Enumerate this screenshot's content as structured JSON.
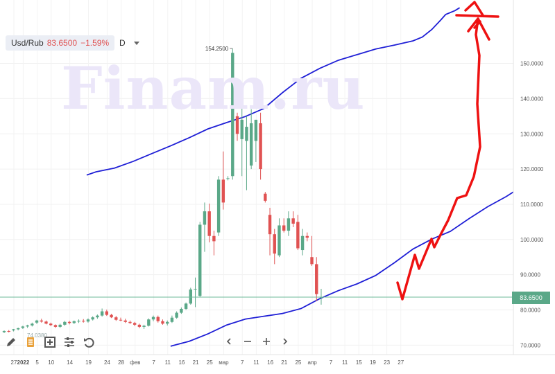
{
  "header": {
    "symbol": "Usd/Rub",
    "last_price": "83.6500",
    "change": "−1.59%",
    "timeframe": "D"
  },
  "watermark": "Finam.ru",
  "price_tag": "83.6500",
  "colors": {
    "up": "#5aa888",
    "down": "#e05252",
    "envelope": "#1f1fd6",
    "annotation": "#ee1111",
    "price_line": "#6cb899"
  },
  "toolbar": {
    "icons": [
      "pencil-icon",
      "document-icon",
      "add-indicator-icon",
      "settings-sliders-icon",
      "undo-icon"
    ],
    "nav_icons": [
      "chevron-left-icon",
      "minus-icon",
      "plus-icon",
      "chevron-right-icon"
    ]
  },
  "chart_data": {
    "type": "candlestick",
    "y_range": [
      68,
      173
    ],
    "y_ticks": [
      "150.0000",
      "140.0000",
      "130.0000",
      "120.0000",
      "110.0000",
      "100.0000",
      "90.0000",
      "80.0000",
      "70.0000"
    ],
    "y_tick_values": [
      150,
      140,
      130,
      120,
      110,
      100,
      90,
      80,
      70
    ],
    "x_ticks": [
      "27",
      "2022",
      "5",
      "10",
      "14",
      "19",
      "24",
      "28",
      "фев",
      "7",
      "11",
      "16",
      "21",
      "25",
      "мар",
      "7",
      "11",
      "16",
      "21",
      "25",
      "апр",
      "7",
      "11",
      "15",
      "19",
      "23",
      "27"
    ],
    "x_tick_index": [
      0,
      2,
      5,
      8,
      12,
      16,
      20,
      23,
      26,
      30,
      33,
      36,
      39,
      42,
      45,
      49,
      52,
      55,
      58,
      61,
      64,
      68,
      71,
      74,
      77,
      80,
      83
    ],
    "max_label": "154.2500",
    "min_label": "74.0380",
    "last_price": 83.65,
    "candles": [
      [
        73.7,
        74.2,
        73.4,
        74.0
      ],
      [
        74.0,
        74.3,
        73.6,
        73.8
      ],
      [
        74.2,
        74.6,
        73.9,
        74.5
      ],
      [
        74.5,
        75.0,
        74.2,
        74.8
      ],
      [
        74.9,
        75.5,
        74.6,
        75.3
      ],
      [
        75.3,
        75.8,
        74.9,
        75.6
      ],
      [
        75.6,
        76.4,
        75.3,
        76.1
      ],
      [
        76.4,
        77.2,
        76.0,
        77.0
      ],
      [
        77.0,
        77.5,
        76.4,
        76.7
      ],
      [
        76.7,
        77.0,
        75.9,
        76.1
      ],
      [
        76.1,
        76.4,
        75.4,
        75.7
      ],
      [
        75.7,
        75.9,
        74.9,
        75.2
      ],
      [
        75.2,
        76.1,
        74.9,
        75.8
      ],
      [
        75.8,
        76.9,
        75.5,
        76.6
      ],
      [
        76.6,
        76.9,
        75.9,
        76.3
      ],
      [
        76.3,
        77.0,
        76.0,
        76.8
      ],
      [
        76.8,
        77.3,
        76.3,
        76.9
      ],
      [
        76.9,
        77.4,
        76.4,
        76.7
      ],
      [
        76.7,
        77.6,
        76.4,
        77.3
      ],
      [
        77.3,
        78.2,
        77.0,
        77.9
      ],
      [
        77.9,
        78.7,
        77.5,
        78.4
      ],
      [
        78.4,
        80.4,
        78.1,
        79.6
      ],
      [
        79.6,
        80.1,
        78.3,
        78.6
      ],
      [
        78.6,
        78.9,
        77.7,
        77.9
      ],
      [
        77.9,
        78.3,
        76.9,
        77.2
      ],
      [
        77.2,
        77.8,
        76.8,
        77.0
      ],
      [
        77.0,
        77.5,
        76.3,
        76.6
      ],
      [
        76.6,
        77.0,
        76.0,
        76.3
      ],
      [
        76.3,
        76.6,
        75.4,
        75.8
      ],
      [
        75.8,
        76.1,
        74.8,
        75.2
      ],
      [
        75.2,
        75.8,
        74.6,
        75.5
      ],
      [
        75.5,
        77.6,
        75.3,
        77.3
      ],
      [
        77.3,
        78.4,
        76.8,
        78.0
      ],
      [
        78.0,
        78.4,
        76.4,
        76.8
      ],
      [
        76.8,
        77.3,
        75.8,
        76.1
      ],
      [
        76.1,
        77.0,
        75.6,
        76.6
      ],
      [
        76.6,
        78.4,
        76.3,
        77.8
      ],
      [
        77.8,
        79.6,
        77.5,
        79.2
      ],
      [
        79.2,
        80.7,
        78.9,
        80.3
      ],
      [
        80.3,
        82.1,
        80.0,
        81.8
      ],
      [
        81.8,
        86.3,
        81.5,
        85.8
      ],
      [
        85.8,
        89.2,
        80.8,
        86.0
      ],
      [
        84.0,
        105.0,
        83.6,
        104.2
      ],
      [
        104.2,
        110.5,
        96.5,
        108.0
      ],
      [
        108.0,
        110.2,
        99.2,
        101.0
      ],
      [
        101.0,
        102.5,
        95.5,
        99.5
      ],
      [
        102.0,
        118.0,
        101.0,
        117.0
      ],
      [
        117.0,
        125.0,
        108.5,
        110.5
      ],
      [
        117.2,
        118.0,
        116.8,
        117.4
      ],
      [
        118.0,
        154.2,
        117.0,
        153.0
      ],
      [
        135.0,
        136.0,
        128.0,
        130.0
      ],
      [
        128.5,
        139.5,
        118.0,
        134.0
      ],
      [
        128.0,
        135.0,
        114.0,
        132.0
      ],
      [
        121.0,
        137.0,
        120.0,
        133.0
      ],
      [
        128.0,
        134.0,
        122.0,
        134.0
      ],
      [
        133.0,
        136.0,
        117.0,
        120.0
      ],
      [
        113.0,
        113.5,
        110.5,
        111.0
      ],
      [
        107.0,
        109.0,
        95.5,
        101.5
      ],
      [
        101.5,
        103.0,
        93.0,
        96.0
      ],
      [
        95.5,
        106.0,
        95.0,
        104.0
      ],
      [
        104.0,
        106.0,
        102.0,
        102.5
      ],
      [
        102.5,
        108.0,
        101.0,
        106.0
      ],
      [
        106.0,
        108.0,
        103.5,
        104.5
      ],
      [
        105.0,
        107.0,
        97.0,
        97.5
      ],
      [
        97.0,
        103.0,
        95.5,
        101.0
      ],
      [
        101.0,
        102.0,
        99.5,
        100.5
      ],
      [
        95.0,
        101.0,
        92.5,
        93.0
      ],
      [
        93.0,
        95.0,
        82.5,
        84.5
      ],
      [
        83.5,
        86.0,
        81.5,
        83.65
      ]
    ],
    "upper_envelope": [
      [
        18,
        118.3
      ],
      [
        20,
        119.2
      ],
      [
        24,
        120.3
      ],
      [
        28,
        122.2
      ],
      [
        32,
        124.4
      ],
      [
        36,
        126.6
      ],
      [
        40,
        128.9
      ],
      [
        44,
        131.4
      ],
      [
        48,
        133.2
      ],
      [
        52,
        134.9
      ],
      [
        56,
        137.2
      ],
      [
        60,
        141.7
      ],
      [
        64,
        145.8
      ],
      [
        68,
        148.6
      ],
      [
        72,
        150.9
      ],
      [
        76,
        152.5
      ],
      [
        80,
        154.1
      ],
      [
        84,
        155.2
      ],
      [
        88,
        156.4
      ],
      [
        90,
        157.5
      ],
      [
        92,
        159.6
      ],
      [
        94,
        162.4
      ],
      [
        95,
        163.9
      ],
      [
        97,
        165.0
      ],
      [
        98,
        165.8
      ]
    ],
    "lower_envelope": [
      [
        36,
        69.7
      ],
      [
        40,
        71.1
      ],
      [
        44,
        73.2
      ],
      [
        48,
        75.7
      ],
      [
        52,
        77.4
      ],
      [
        56,
        78.2
      ],
      [
        60,
        79.0
      ],
      [
        64,
        80.4
      ],
      [
        68,
        83.2
      ],
      [
        72,
        85.5
      ],
      [
        76,
        87.4
      ],
      [
        80,
        89.8
      ],
      [
        84,
        93.4
      ],
      [
        88,
        97.3
      ],
      [
        92,
        100.1
      ],
      [
        96,
        102.3
      ],
      [
        100,
        105.9
      ],
      [
        104,
        109.3
      ],
      [
        108,
        112.2
      ],
      [
        112,
        115.6
      ],
      [
        114,
        116.5
      ]
    ]
  }
}
